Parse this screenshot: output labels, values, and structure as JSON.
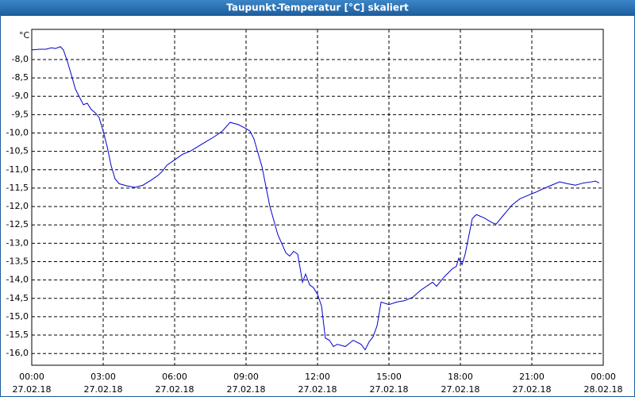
{
  "chart_data": {
    "type": "line",
    "title": "Taupunkt-Temperatur [°C] skaliert",
    "y_unit": "°C",
    "color": "#0000cc",
    "grid": true,
    "xlim": [
      0,
      24
    ],
    "xticks": [
      {
        "value": 0,
        "label": "00:00",
        "date": "27.02.18"
      },
      {
        "value": 3,
        "label": "03:00",
        "date": "27.02.18"
      },
      {
        "value": 6,
        "label": "06:00",
        "date": "27.02.18"
      },
      {
        "value": 9,
        "label": "09:00",
        "date": "27.02.18"
      },
      {
        "value": 12,
        "label": "12:00",
        "date": "27.02.18"
      },
      {
        "value": 15,
        "label": "15:00",
        "date": "27.02.18"
      },
      {
        "value": 18,
        "label": "18:00",
        "date": "27.02.18"
      },
      {
        "value": 21,
        "label": "21:00",
        "date": "27.02.18"
      },
      {
        "value": 24,
        "label": "00:00",
        "date": "28.02.18"
      }
    ],
    "ylim": [
      -16.32,
      -7.18
    ],
    "yticks": [
      {
        "value": -8.0,
        "label": "-8,0"
      },
      {
        "value": -8.5,
        "label": "-8,5"
      },
      {
        "value": -9.0,
        "label": "-9,0"
      },
      {
        "value": -9.5,
        "label": "-9,5"
      },
      {
        "value": -10.0,
        "label": "-10,0"
      },
      {
        "value": -10.5,
        "label": "-10,5"
      },
      {
        "value": -11.0,
        "label": "-11,0"
      },
      {
        "value": -11.5,
        "label": "-11,5"
      },
      {
        "value": -12.0,
        "label": "-12,0"
      },
      {
        "value": -12.5,
        "label": "-12,5"
      },
      {
        "value": -13.0,
        "label": "-13,0"
      },
      {
        "value": -13.5,
        "label": "-13,5"
      },
      {
        "value": -14.0,
        "label": "-14,0"
      },
      {
        "value": -14.5,
        "label": "-14,5"
      },
      {
        "value": -15.0,
        "label": "-15,0"
      },
      {
        "value": -15.5,
        "label": "-15,5"
      },
      {
        "value": -16.0,
        "label": "-16,0"
      }
    ],
    "x": [
      0,
      0.33,
      0.6,
      0.83,
      1.0,
      1.2,
      1.33,
      1.5,
      1.67,
      1.83,
      2.0,
      2.17,
      2.33,
      2.5,
      2.67,
      2.83,
      3.0,
      3.17,
      3.33,
      3.5,
      3.67,
      4.0,
      4.33,
      4.67,
      5.0,
      5.33,
      5.5,
      5.67,
      6.0,
      6.33,
      6.67,
      7.0,
      7.33,
      7.67,
      8.0,
      8.33,
      8.67,
      9.0,
      9.17,
      9.33,
      9.67,
      10.0,
      10.33,
      10.67,
      10.83,
      11.0,
      11.17,
      11.37,
      11.5,
      11.67,
      11.83,
      12.0,
      12.17,
      12.33,
      12.5,
      12.67,
      12.83,
      13.17,
      13.5,
      13.83,
      14.0,
      14.17,
      14.33,
      14.5,
      14.67,
      15.0,
      15.33,
      15.67,
      16.0,
      16.33,
      16.67,
      16.83,
      17.0,
      17.33,
      17.67,
      17.83,
      17.93,
      18.07,
      18.2,
      18.5,
      18.67,
      19.0,
      19.33,
      19.5,
      19.83,
      20.17,
      20.5,
      20.83,
      21.17,
      21.5,
      21.83,
      22.17,
      22.5,
      22.83,
      23.17,
      23.5,
      23.67,
      23.83
    ],
    "values": [
      -7.74,
      -7.72,
      -7.72,
      -7.68,
      -7.7,
      -7.65,
      -7.74,
      -8.06,
      -8.43,
      -8.8,
      -9.02,
      -9.23,
      -9.19,
      -9.36,
      -9.45,
      -9.58,
      -9.95,
      -10.38,
      -10.88,
      -11.25,
      -11.38,
      -11.44,
      -11.48,
      -11.42,
      -11.29,
      -11.14,
      -11.03,
      -10.88,
      -10.73,
      -10.58,
      -10.49,
      -10.36,
      -10.23,
      -10.1,
      -9.95,
      -9.71,
      -9.77,
      -9.88,
      -9.95,
      -10.16,
      -10.92,
      -12.0,
      -12.76,
      -13.26,
      -13.35,
      -13.22,
      -13.3,
      -14.06,
      -13.84,
      -14.13,
      -14.21,
      -14.39,
      -14.71,
      -15.58,
      -15.64,
      -15.81,
      -15.75,
      -15.81,
      -15.64,
      -15.75,
      -15.9,
      -15.68,
      -15.55,
      -15.25,
      -14.6,
      -14.67,
      -14.6,
      -14.56,
      -14.47,
      -14.28,
      -14.13,
      -14.06,
      -14.17,
      -13.91,
      -13.69,
      -13.63,
      -13.41,
      -13.58,
      -13.3,
      -12.33,
      -12.22,
      -12.31,
      -12.44,
      -12.48,
      -12.22,
      -11.96,
      -11.79,
      -11.7,
      -11.61,
      -11.51,
      -11.42,
      -11.33,
      -11.38,
      -11.42,
      -11.36,
      -11.33,
      -11.31,
      -11.36
    ]
  }
}
